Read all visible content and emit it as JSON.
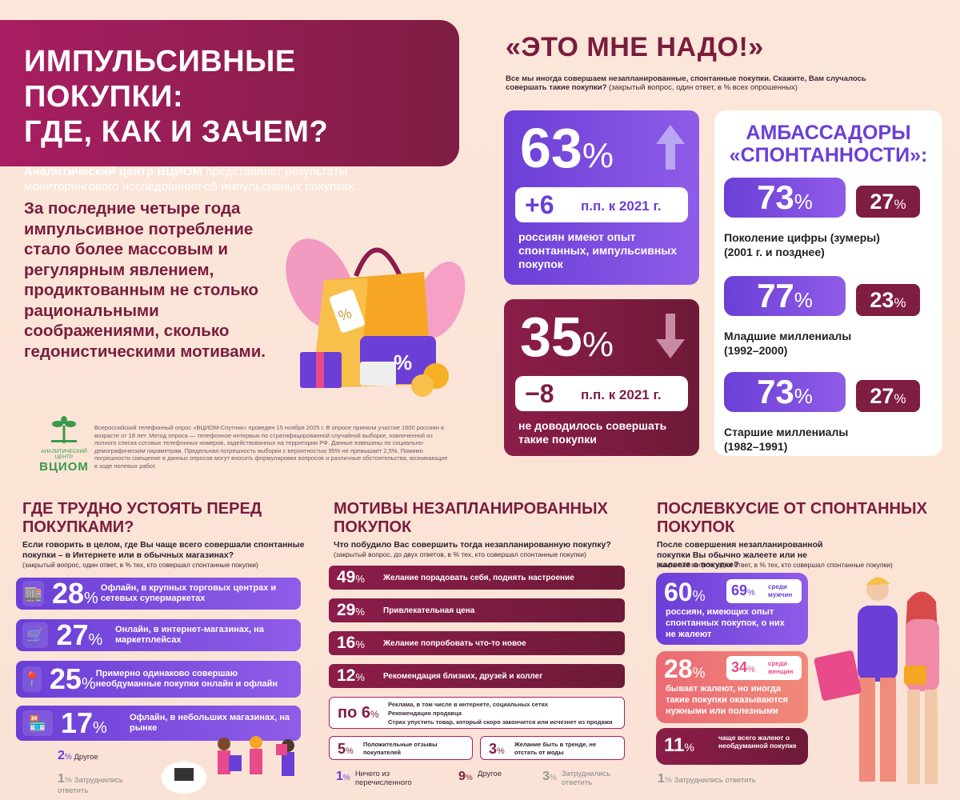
{
  "title": {
    "line1": "ИМПУЛЬСИВНЫЕ ПОКУПКИ:",
    "line2": "ГДЕ, КАК И ЗАЧЕМ?"
  },
  "subtitle_bold": "Аналитический центр ВЦИОМ",
  "subtitle_rest": " представляет результаты мониторингового исследования об импульсивных покупках.",
  "intro": "За последние четыре года импульсивное потребление стало более массовым и регулярным явлением, продиктованным не столько рациональными соображениями, сколько гедонистическими мотивами.",
  "methodology": "Всероссийский телефонный опрос «ВЦИОМ-Спутник» проведен 15 ноября 2025 г. В опросе приняли участие 1600 россиян в возрасте от 18 лет. Метод опроса — телефонное интервью по стратифицированной случайной выборке, извлеченной из полного списка сотовых телефонных номеров, задействованных на территории РФ. Данные взвешены по социально-демографическим параметрам. Предельная погрешность выборки с вероятностью 95% не превышает 2,5%. Помимо погрешности смещение в данных опросов могут вносить формулировки вопросов и различные обстоятельства, возникающие в ходе полевых работ.",
  "logo": {
    "line1": "АНАЛИТИЧЕСКИЙ ЦЕНТР",
    "name": "ВЦИОМ"
  },
  "need": {
    "heading": "«ЭТО МНЕ НАДО!»",
    "question": "Все мы иногда совершаем незапланированные, спонтанные покупки. Скажите, Вам случалось совершать такие покупки?",
    "question_note": "(закрытый вопрос, один ответ, в % всех опрошенных)",
    "yes": {
      "value": "63",
      "unit": "%",
      "change": "+6",
      "change_unit": "п.п. к 2021 г.",
      "label": "россиян имеют опыт спонтанных, импульсивных покупок"
    },
    "no": {
      "value": "35",
      "unit": "%",
      "change": "−8",
      "change_unit": "п.п. к 2021 г.",
      "label": "не доводилось совершать такие покупки"
    }
  },
  "ambassadors": {
    "title_line1": "АМБАССАДОРЫ",
    "title_line2": "«СПОНТАННОСТИ»:",
    "rows": [
      {
        "yes": "73",
        "no": "27",
        "label": "Поколение цифры (зумеры)",
        "years": "(2001 г. и позднее)"
      },
      {
        "yes": "77",
        "no": "23",
        "label": "Младшие миллениалы",
        "years": "(1992–2000)"
      },
      {
        "yes": "73",
        "no": "27",
        "label": "Старшие миллениалы",
        "years": "(1982–1991)"
      }
    ],
    "unit": "%"
  },
  "where": {
    "heading": "ГДЕ ТРУДНО УСТОЯТЬ ПЕРЕД ПОКУПКАМИ?",
    "question": "Если говорить в целом, где Вы чаще всего совершали спонтанные покупки – в Интернете или в обычных магазинах?",
    "note": "(закрытый вопрос, один ответ, в % тех, кто совершал спонтанные покупки)",
    "items": [
      {
        "value": "28",
        "text": "Офлайн, в крупных торговых центрах и сетевых супермаркетах",
        "icon": "mall-icon"
      },
      {
        "value": "27",
        "text": "Онлайн, в интернет-магазинах, на маркетплейсах",
        "icon": "online-shop-icon"
      },
      {
        "value": "25",
        "text": "Примерно одинаково совершаю необдуманные покупки онлайн и офлайн",
        "icon": "location-pin-icon"
      },
      {
        "value": "17",
        "text": "Офлайн, в небольших магазинах, на рынке",
        "icon": "small-shop-icon"
      }
    ],
    "other": {
      "value": "2",
      "text": "Другое"
    },
    "hard": {
      "value": "1",
      "text": "Затруднились ответить"
    }
  },
  "motives": {
    "heading": "МОТИВЫ НЕЗАПЛАНИРОВАННЫХ ПОКУПОК",
    "question": "Что побудило Вас совершить тогда незапланированную покупку?",
    "note": "(закрытый вопрос, до двух ответов, в % тех, кто совершал спонтанные покупки)",
    "items": [
      {
        "value": "49",
        "text": "Желание порадовать себя, поднять настроение"
      },
      {
        "value": "29",
        "text": "Привлекательная цена"
      },
      {
        "value": "16",
        "text": "Желание попробовать что-то новое"
      },
      {
        "value": "12",
        "text": "Рекомендация близких, друзей и коллег"
      }
    ],
    "group6": {
      "prefix": "по 6",
      "items": [
        "Реклама, в том числе в интернете, социальных сетях",
        "Рекомендация продавца",
        "Страх упустить товар, который скоро закончится или исчезнет из продажи"
      ]
    },
    "small": [
      {
        "value": "5",
        "text": "Положительные отзывы покупателей"
      },
      {
        "value": "3",
        "text": "Желание быть в тренде, не отстать от моды"
      }
    ],
    "foot": [
      {
        "value": "1",
        "text": "Ничего из перечисленного"
      },
      {
        "value": "9",
        "text": "Другое"
      },
      {
        "value": "3",
        "text": "Затруднились ответить"
      }
    ]
  },
  "after": {
    "heading": "ПОСЛЕВКУСИЕ ОТ СПОНТАННЫХ ПОКУПОК",
    "question": "После совершения незапланированной покупки Вы обычно жалеете или не жалеете о покупке?",
    "note": "(закрытый вопрос, один ответ, в % тех, кто совершал спонтанные покупки)",
    "no_regret": {
      "value": "60",
      "text": "россиян, имеющих опыт спонтанных покупок, о них не жалеют",
      "sub_value": "69",
      "sub_text": "среди мужчин"
    },
    "sometimes": {
      "value": "28",
      "text": "бывает жалеют, но иногда такие покупки оказываются нужными или полезными",
      "sub_value": "34",
      "sub_text": "среди женщин"
    },
    "regret": {
      "value": "11",
      "text": "чаще всего жалеют о необдуманной покупке"
    },
    "hard": {
      "value": "1",
      "text": "Затруднились ответить"
    }
  },
  "pct": "%"
}
